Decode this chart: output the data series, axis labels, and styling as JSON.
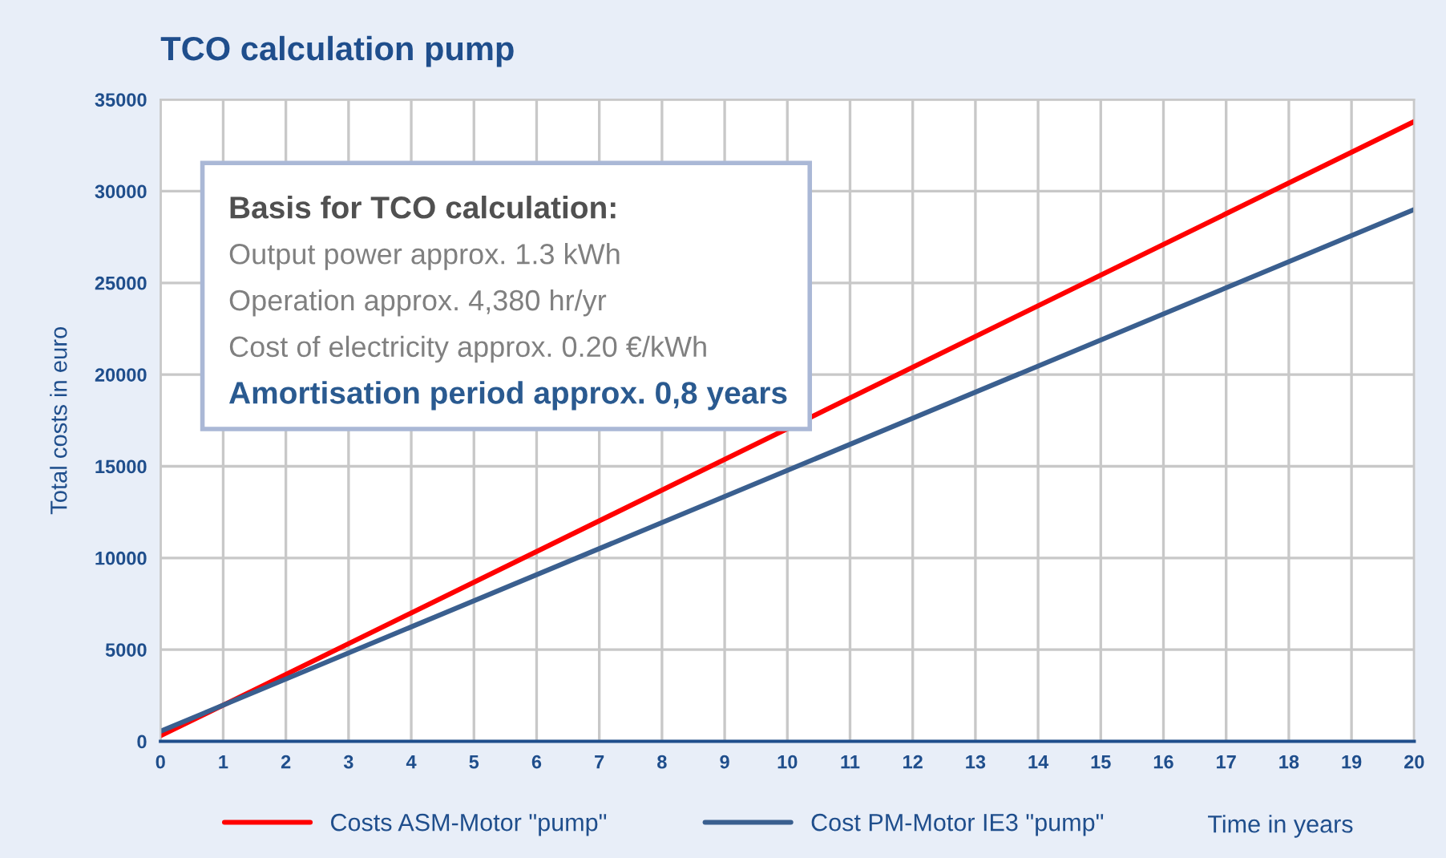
{
  "chart_data": {
    "type": "line",
    "title": "TCO calculation pump",
    "ylabel": "Total costs in euro",
    "xlabel": "Time in years",
    "annotations": [
      "Basis for TCO calculation:",
      "Output power approx. 1.3 kWh",
      "Operation approx. 4,380 hr/yr",
      "Cost of electricity approx. 0.20 €/kWh",
      "Amortisation period approx. 0,8 years"
    ],
    "x": [
      0,
      20
    ],
    "series": [
      {
        "name": "Costs ASM-Motor \"pump\"",
        "color": "#ff0000",
        "values": [
          300,
          33800
        ]
      },
      {
        "name": "Cost PM-Motor IE3 \"pump\"",
        "color": "#3a5f8f",
        "values": [
          550,
          29000
        ]
      }
    ],
    "xlim": [
      0,
      20
    ],
    "xticks": [
      0,
      1,
      2,
      3,
      4,
      5,
      6,
      7,
      8,
      9,
      10,
      11,
      12,
      13,
      14,
      15,
      16,
      17,
      18,
      19,
      20
    ],
    "ylim": [
      0,
      35000
    ],
    "yticks": [
      0,
      5000,
      10000,
      15000,
      20000,
      25000,
      30000,
      35000
    ],
    "grid": true,
    "legend": "bottom",
    "marker": "none",
    "line_style": "solid"
  }
}
